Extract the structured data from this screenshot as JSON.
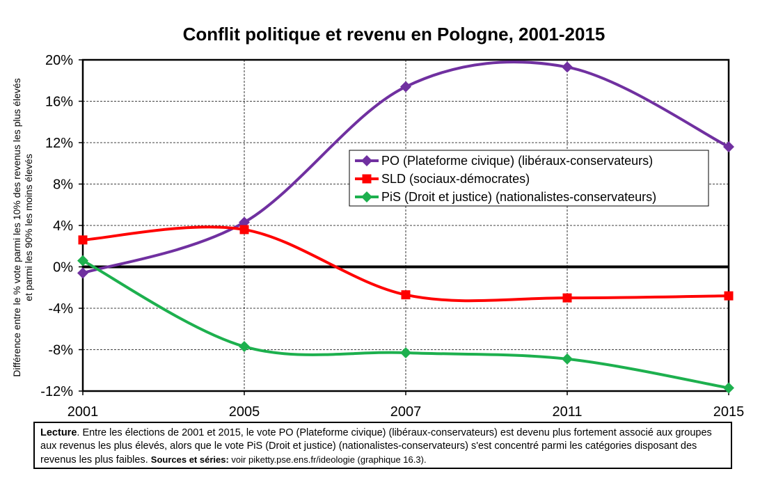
{
  "chart_data": {
    "type": "line",
    "title": "Conflit politique et revenu en Pologne, 2001-2015",
    "ylabel_line1": "Différence entre le % vote parmi les 10% des revenus les plus élevés",
    "ylabel_line2": "et parmi les 90% les moins élevés",
    "x": [
      2001,
      2005,
      2007,
      2011,
      2015
    ],
    "x_tick_labels": [
      "2001",
      "2005",
      "2007",
      "2011",
      "2015"
    ],
    "ylim": [
      -12,
      20
    ],
    "y_ticks": [
      -12,
      -8,
      -4,
      0,
      4,
      8,
      12,
      16,
      20
    ],
    "y_tick_labels": [
      "-12%",
      "-8%",
      "-4%",
      "0%",
      "4%",
      "8%",
      "12%",
      "16%",
      "20%"
    ],
    "grid": true,
    "legend_position": "center-right",
    "series": [
      {
        "name": "PO (Plateforme civique) (libéraux-conservateurs)",
        "color": "#7030A0",
        "marker": "diamond",
        "values": [
          -0.6,
          4.3,
          17.4,
          19.3,
          11.6
        ]
      },
      {
        "name": "SLD (sociaux-démocrates)",
        "color": "#FF0000",
        "marker": "square",
        "values": [
          2.6,
          3.6,
          -2.7,
          -3.0,
          -2.8
        ]
      },
      {
        "name": "PiS (Droit et justice) (nationalistes-conservateurs)",
        "color": "#1DB04E",
        "marker": "diamond",
        "values": [
          0.6,
          -7.7,
          -8.3,
          -8.9,
          -11.7
        ]
      }
    ]
  },
  "note": {
    "lecture_label": "Lecture",
    "text": ". Entre les élections de 2001 et 2015, le vote PO (Plateforme civique) (libéraux-conservateurs) est devenu plus fortement associé aux groupes aux revenus les plus élevés, alors que le vote PiS (Droit et justice) (nationalistes-conservateurs) s'est concentré parmi les catégories disposant des revenus les plus faibles. ",
    "sources_label": "Sources et séries:",
    "sources_text": " voir piketty.pse.ens.fr/ideologie (graphique 16.3)."
  }
}
